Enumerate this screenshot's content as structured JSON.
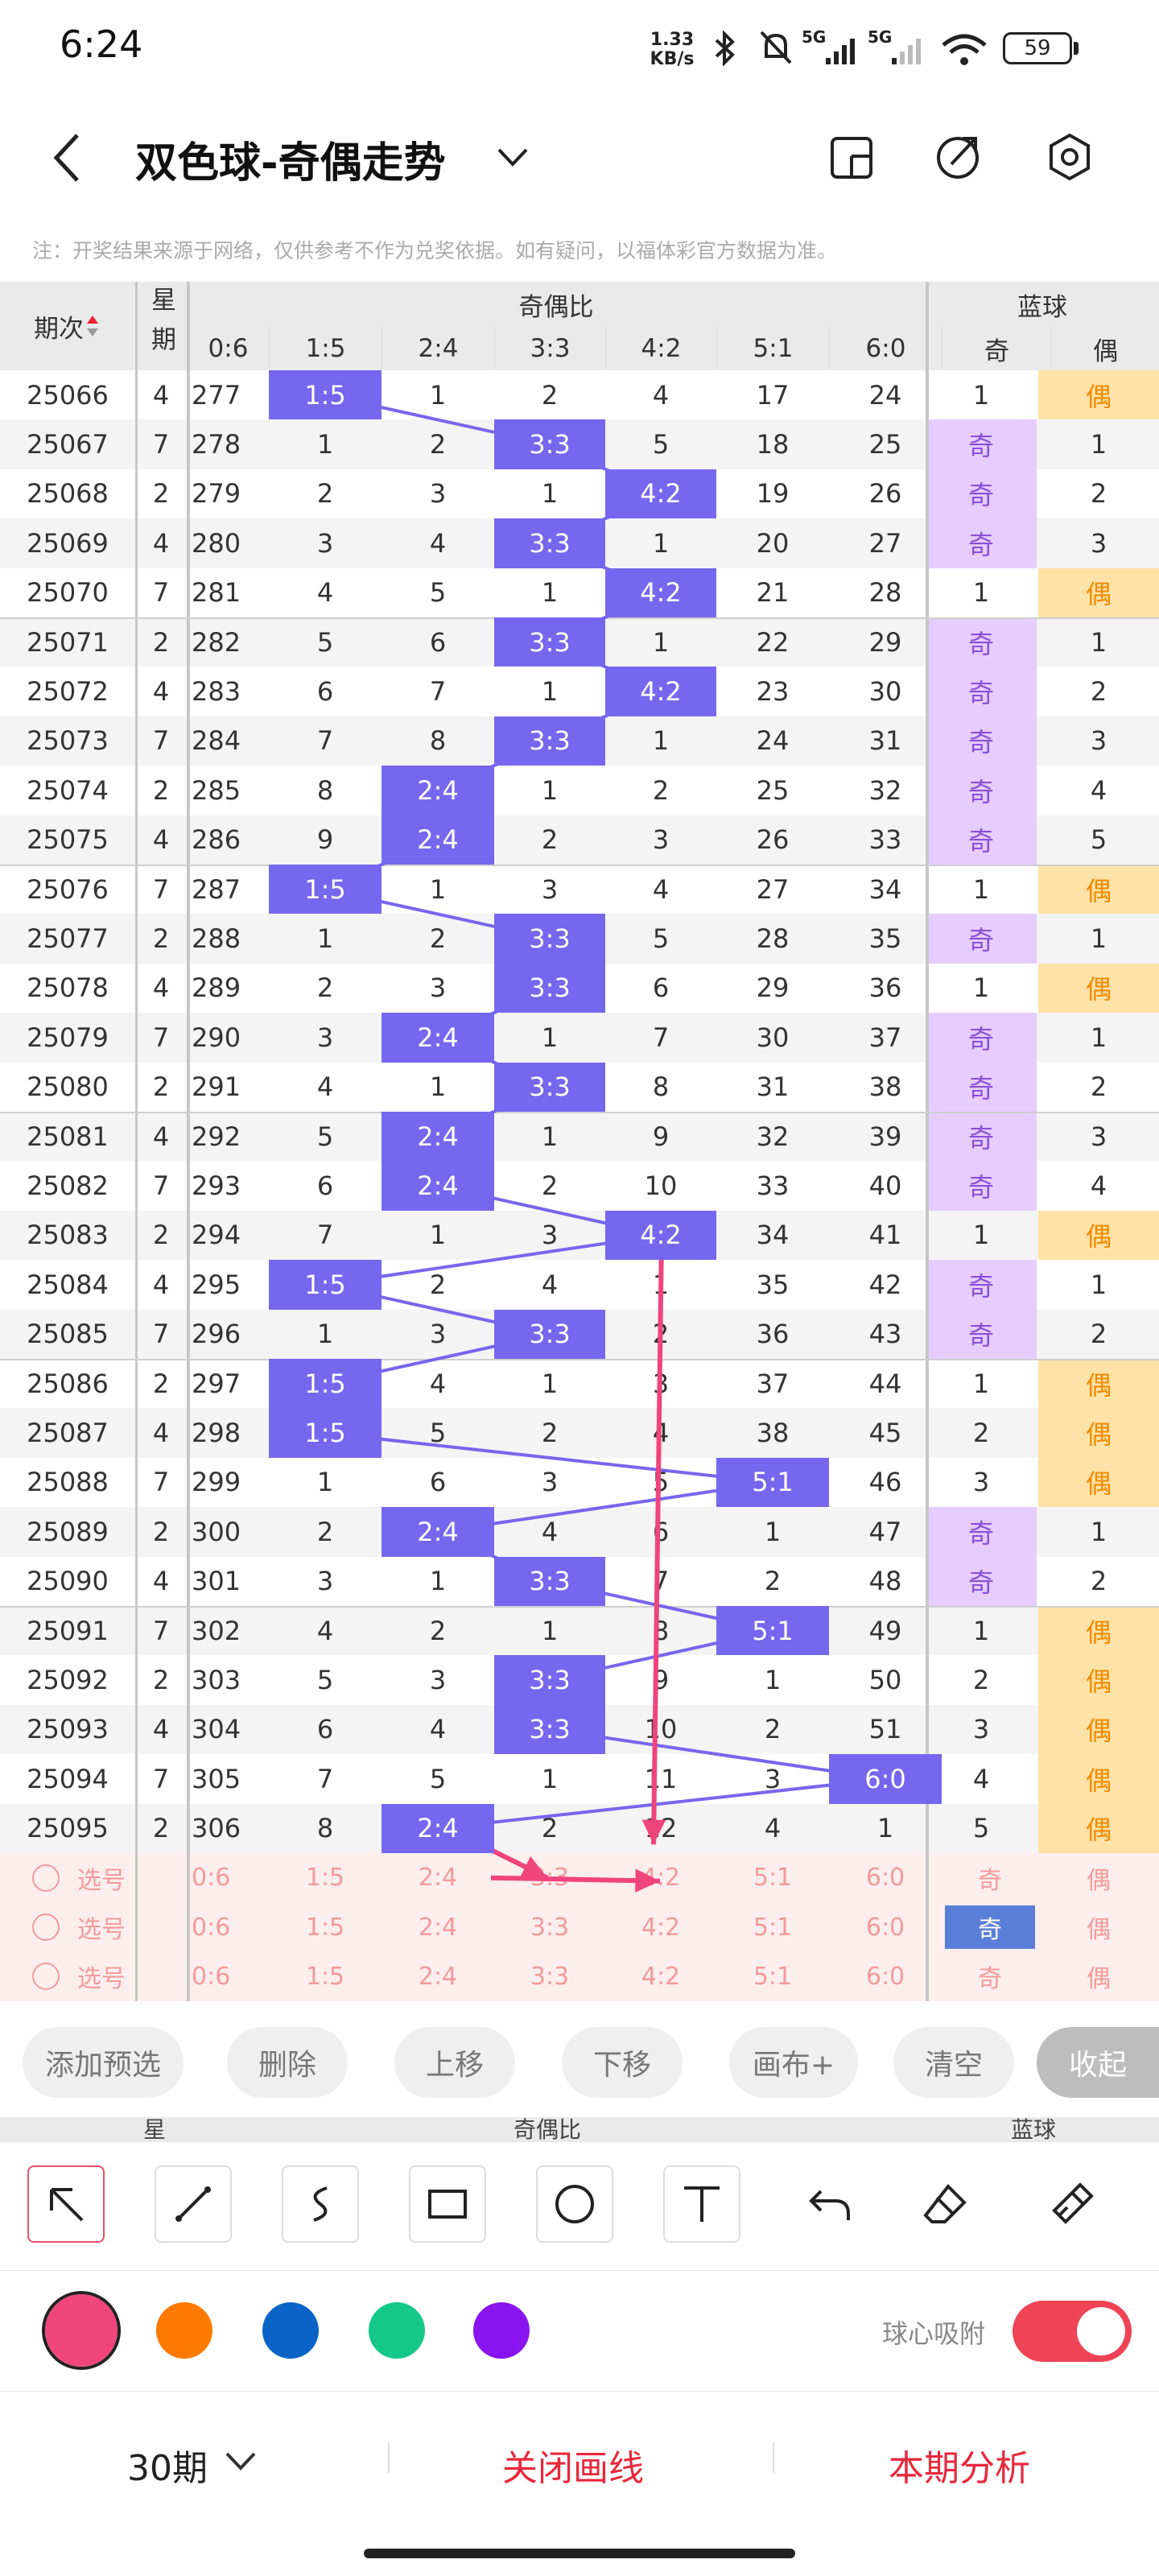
{
  "status": {
    "time": "6:24",
    "net_speed": "1.33",
    "net_unit": "KB/s",
    "sig1": "5G",
    "sig2": "5G",
    "battery": "59"
  },
  "header": {
    "title": "双色球-奇偶走势"
  },
  "note": "注：开奖结果来源于网络，仅供参考不作为兑奖依据。如有疑问，以福体彩官方数据为准。",
  "table": {
    "col_period": "期次",
    "col_week": "星期",
    "group_oe": "奇偶比",
    "group_blue": "蓝球",
    "subheads": [
      "0:6",
      "1:5",
      "2:4",
      "3:3",
      "4:2",
      "5:1",
      "6:0",
      "奇",
      "偶"
    ],
    "rows": [
      {
        "p": "25066",
        "w": "4",
        "c": [
          "277",
          "1:5",
          "1",
          "2",
          "4",
          "17",
          "24"
        ],
        "h": 1,
        "b": [
          "1",
          "偶"
        ],
        "bb": 1
      },
      {
        "p": "25067",
        "w": "7",
        "c": [
          "278",
          "1",
          "2",
          "3:3",
          "5",
          "18",
          "25"
        ],
        "h": 3,
        "b": [
          "奇",
          "1"
        ],
        "bb": 0
      },
      {
        "p": "25068",
        "w": "2",
        "c": [
          "279",
          "2",
          "3",
          "1",
          "4:2",
          "19",
          "26"
        ],
        "h": 4,
        "b": [
          "奇",
          "2"
        ],
        "bb": 0
      },
      {
        "p": "25069",
        "w": "4",
        "c": [
          "280",
          "3",
          "4",
          "3:3",
          "1",
          "20",
          "27"
        ],
        "h": 3,
        "b": [
          "奇",
          "3"
        ],
        "bb": 0
      },
      {
        "p": "25070",
        "w": "7",
        "c": [
          "281",
          "4",
          "5",
          "1",
          "4:2",
          "21",
          "28"
        ],
        "h": 4,
        "b": [
          "1",
          "偶"
        ],
        "bb": 1
      },
      {
        "p": "25071",
        "w": "2",
        "c": [
          "282",
          "5",
          "6",
          "3:3",
          "1",
          "22",
          "29"
        ],
        "h": 3,
        "b": [
          "奇",
          "1"
        ],
        "bb": 0
      },
      {
        "p": "25072",
        "w": "4",
        "c": [
          "283",
          "6",
          "7",
          "1",
          "4:2",
          "23",
          "30"
        ],
        "h": 4,
        "b": [
          "奇",
          "2"
        ],
        "bb": 0
      },
      {
        "p": "25073",
        "w": "7",
        "c": [
          "284",
          "7",
          "8",
          "3:3",
          "1",
          "24",
          "31"
        ],
        "h": 3,
        "b": [
          "奇",
          "3"
        ],
        "bb": 0
      },
      {
        "p": "25074",
        "w": "2",
        "c": [
          "285",
          "8",
          "2:4",
          "1",
          "2",
          "25",
          "32"
        ],
        "h": 2,
        "b": [
          "奇",
          "4"
        ],
        "bb": 0
      },
      {
        "p": "25075",
        "w": "4",
        "c": [
          "286",
          "9",
          "2:4",
          "2",
          "3",
          "26",
          "33"
        ],
        "h": 2,
        "b": [
          "奇",
          "5"
        ],
        "bb": 0
      },
      {
        "p": "25076",
        "w": "7",
        "c": [
          "287",
          "1:5",
          "1",
          "3",
          "4",
          "27",
          "34"
        ],
        "h": 1,
        "b": [
          "1",
          "偶"
        ],
        "bb": 1
      },
      {
        "p": "25077",
        "w": "2",
        "c": [
          "288",
          "1",
          "2",
          "3:3",
          "5",
          "28",
          "35"
        ],
        "h": 3,
        "b": [
          "奇",
          "1"
        ],
        "bb": 0
      },
      {
        "p": "25078",
        "w": "4",
        "c": [
          "289",
          "2",
          "3",
          "3:3",
          "6",
          "29",
          "36"
        ],
        "h": 3,
        "b": [
          "1",
          "偶"
        ],
        "bb": 1
      },
      {
        "p": "25079",
        "w": "7",
        "c": [
          "290",
          "3",
          "2:4",
          "1",
          "7",
          "30",
          "37"
        ],
        "h": 2,
        "b": [
          "奇",
          "1"
        ],
        "bb": 0
      },
      {
        "p": "25080",
        "w": "2",
        "c": [
          "291",
          "4",
          "1",
          "3:3",
          "8",
          "31",
          "38"
        ],
        "h": 3,
        "b": [
          "奇",
          "2"
        ],
        "bb": 0
      },
      {
        "p": "25081",
        "w": "4",
        "c": [
          "292",
          "5",
          "2:4",
          "1",
          "9",
          "32",
          "39"
        ],
        "h": 2,
        "b": [
          "奇",
          "3"
        ],
        "bb": 0
      },
      {
        "p": "25082",
        "w": "7",
        "c": [
          "293",
          "6",
          "2:4",
          "2",
          "10",
          "33",
          "40"
        ],
        "h": 2,
        "b": [
          "奇",
          "4"
        ],
        "bb": 0
      },
      {
        "p": "25083",
        "w": "2",
        "c": [
          "294",
          "7",
          "1",
          "3",
          "4:2",
          "34",
          "41"
        ],
        "h": 4,
        "b": [
          "1",
          "偶"
        ],
        "bb": 1
      },
      {
        "p": "25084",
        "w": "4",
        "c": [
          "295",
          "1:5",
          "2",
          "4",
          "1",
          "35",
          "42"
        ],
        "h": 1,
        "b": [
          "奇",
          "1"
        ],
        "bb": 0
      },
      {
        "p": "25085",
        "w": "7",
        "c": [
          "296",
          "1",
          "3",
          "3:3",
          "2",
          "36",
          "43"
        ],
        "h": 3,
        "b": [
          "奇",
          "2"
        ],
        "bb": 0
      },
      {
        "p": "25086",
        "w": "2",
        "c": [
          "297",
          "1:5",
          "4",
          "1",
          "3",
          "37",
          "44"
        ],
        "h": 1,
        "b": [
          "1",
          "偶"
        ],
        "bb": 1
      },
      {
        "p": "25087",
        "w": "4",
        "c": [
          "298",
          "1:5",
          "5",
          "2",
          "4",
          "38",
          "45"
        ],
        "h": 1,
        "b": [
          "2",
          "偶"
        ],
        "bb": 1
      },
      {
        "p": "25088",
        "w": "7",
        "c": [
          "299",
          "1",
          "6",
          "3",
          "5",
          "5:1",
          "46"
        ],
        "h": 5,
        "b": [
          "3",
          "偶"
        ],
        "bb": 1
      },
      {
        "p": "25089",
        "w": "2",
        "c": [
          "300",
          "2",
          "2:4",
          "4",
          "6",
          "1",
          "47"
        ],
        "h": 2,
        "b": [
          "奇",
          "1"
        ],
        "bb": 0
      },
      {
        "p": "25090",
        "w": "4",
        "c": [
          "301",
          "3",
          "1",
          "3:3",
          "7",
          "2",
          "48"
        ],
        "h": 3,
        "b": [
          "奇",
          "2"
        ],
        "bb": 0
      },
      {
        "p": "25091",
        "w": "7",
        "c": [
          "302",
          "4",
          "2",
          "1",
          "8",
          "5:1",
          "49"
        ],
        "h": 5,
        "b": [
          "1",
          "偶"
        ],
        "bb": 1
      },
      {
        "p": "25092",
        "w": "2",
        "c": [
          "303",
          "5",
          "3",
          "3:3",
          "9",
          "1",
          "50"
        ],
        "h": 3,
        "b": [
          "2",
          "偶"
        ],
        "bb": 1
      },
      {
        "p": "25093",
        "w": "4",
        "c": [
          "304",
          "6",
          "4",
          "3:3",
          "10",
          "2",
          "51"
        ],
        "h": 3,
        "b": [
          "3",
          "偶"
        ],
        "bb": 1
      },
      {
        "p": "25094",
        "w": "7",
        "c": [
          "305",
          "7",
          "5",
          "1",
          "11",
          "3",
          "6:0"
        ],
        "h": 6,
        "b": [
          "4",
          "偶"
        ],
        "bb": 1
      },
      {
        "p": "25095",
        "w": "2",
        "c": [
          "306",
          "8",
          "2:4",
          "2",
          "12",
          "4",
          "1"
        ],
        "h": 2,
        "b": [
          "5",
          "偶"
        ],
        "bb": 1
      }
    ],
    "pick_label": "选号",
    "pick_cells": [
      "0:6",
      "1:5",
      "2:4",
      "3:3",
      "4:2",
      "5:1",
      "6:0",
      "奇",
      "偶"
    ]
  },
  "buttons": [
    "添加预选",
    "删除",
    "上移",
    "下移",
    "画布+",
    "清空",
    "收起"
  ],
  "peek": {
    "week": "星",
    "group_oe": "奇偶比",
    "group_blue": "蓝球"
  },
  "colors": {
    "pink": "#f0447c",
    "orange": "#ff7a00",
    "blue": "#0a64c8",
    "green": "#14c88a",
    "purple": "#8a14f0",
    "accent": "#7766ee"
  },
  "snap_label": "球心吸附",
  "bottom": {
    "periods": "30期",
    "close_draw": "关闭画线",
    "analysis": "本期分析"
  }
}
